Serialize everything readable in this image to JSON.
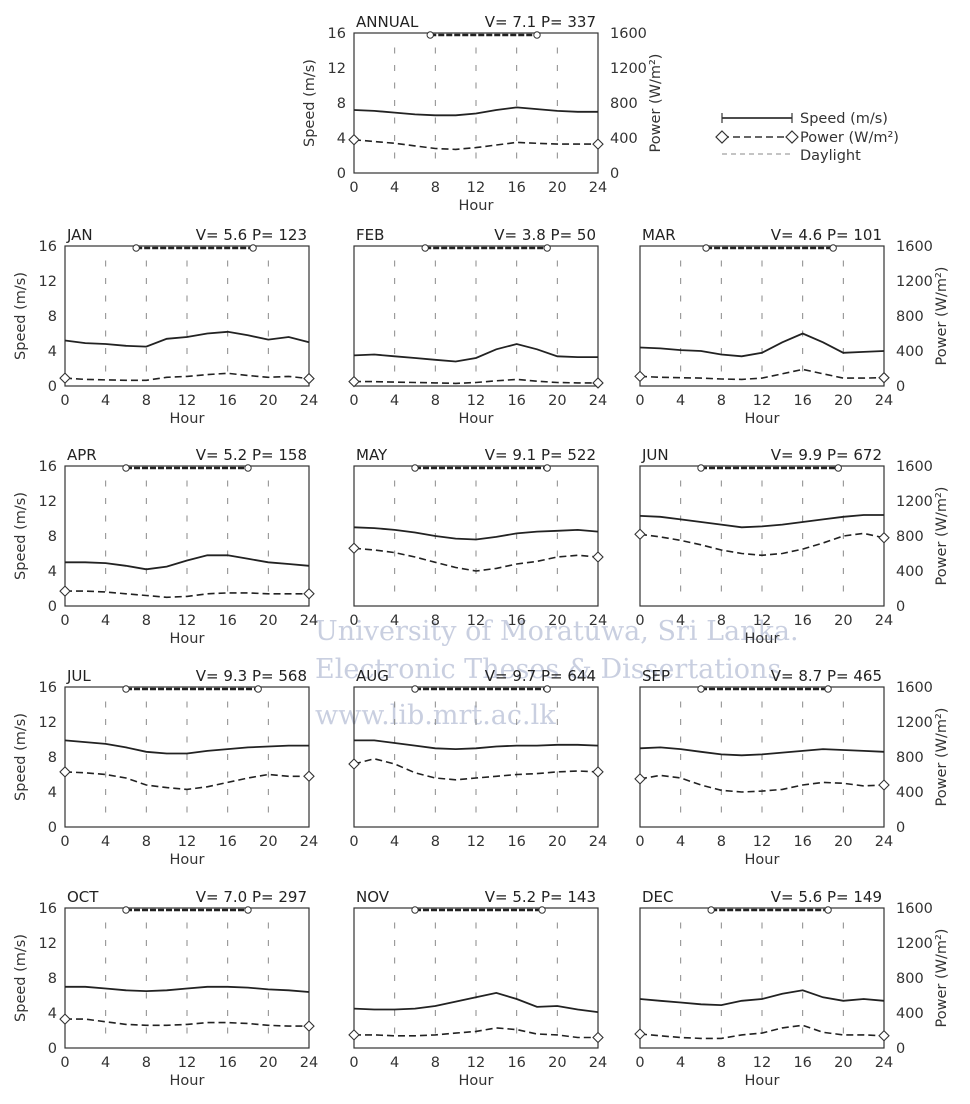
{
  "watermark": {
    "line1": "University of Moratuwa, Sri Lanka.",
    "line2": "Electronic Theses & Dissertations",
    "line3": "www.lib.mrt.ac.lk"
  },
  "legend": {
    "speed": "Speed (m/s)",
    "power": "Power (W/m²)",
    "daylight": "Daylight"
  },
  "chart_data": [
    {
      "id": "annual",
      "type": "line",
      "title": "ANNUAL",
      "vp": "V= 7.1 P= 337",
      "x": [
        0,
        2,
        4,
        6,
        8,
        10,
        12,
        14,
        16,
        18,
        20,
        22,
        24
      ],
      "xlabel": "Hour",
      "ylabel": "Speed (m/s)",
      "y2label": "Power (W/m²)",
      "xlim": [
        0,
        24
      ],
      "ylim": [
        0,
        16
      ],
      "y2lim": [
        0,
        1600
      ],
      "xticks": [
        "0",
        "4",
        "8",
        "12",
        "16",
        "20",
        "24"
      ],
      "yticks": [
        "0",
        "4",
        "8",
        "12",
        "16"
      ],
      "y2ticks": [
        "0",
        "400",
        "800",
        "1200",
        "1600"
      ],
      "daylight": [
        7.5,
        18
      ],
      "series": [
        {
          "name": "Speed (m/s)",
          "axis": "left",
          "values": [
            7.2,
            7.1,
            6.9,
            6.7,
            6.6,
            6.6,
            6.8,
            7.2,
            7.5,
            7.3,
            7.1,
            7.0,
            7.0
          ]
        },
        {
          "name": "Power (W/m²)",
          "axis": "right",
          "values": [
            380,
            360,
            340,
            310,
            280,
            270,
            290,
            320,
            350,
            340,
            330,
            330,
            330
          ]
        }
      ]
    },
    {
      "id": "jan",
      "type": "line",
      "title": "JAN",
      "vp": "V= 5.6 P= 123",
      "x": [
        0,
        2,
        4,
        6,
        8,
        10,
        12,
        14,
        16,
        18,
        20,
        22,
        24
      ],
      "xlabel": "Hour",
      "ylabel": "Speed (m/s)",
      "y2label": "",
      "xlim": [
        0,
        24
      ],
      "ylim": [
        0,
        16
      ],
      "y2lim": [
        0,
        1600
      ],
      "xticks": [
        "0",
        "4",
        "8",
        "12",
        "16",
        "20",
        "24"
      ],
      "yticks": [
        "0",
        "4",
        "8",
        "12",
        "16"
      ],
      "y2ticks": [],
      "daylight": [
        7.0,
        18.5
      ],
      "series": [
        {
          "name": "Speed (m/s)",
          "axis": "left",
          "values": [
            5.2,
            4.9,
            4.8,
            4.6,
            4.5,
            5.4,
            5.6,
            6.0,
            6.2,
            5.8,
            5.3,
            5.6,
            5.0
          ]
        },
        {
          "name": "Power (W/m²)",
          "axis": "right",
          "values": [
            90,
            75,
            70,
            65,
            65,
            100,
            110,
            130,
            145,
            120,
            100,
            110,
            85
          ]
        }
      ]
    },
    {
      "id": "feb",
      "type": "line",
      "title": "FEB",
      "vp": "V= 3.8 P=  50",
      "x": [
        0,
        2,
        4,
        6,
        8,
        10,
        12,
        14,
        16,
        18,
        20,
        22,
        24
      ],
      "xlabel": "Hour",
      "ylabel": "",
      "y2label": "",
      "xlim": [
        0,
        24
      ],
      "ylim": [
        0,
        16
      ],
      "y2lim": [
        0,
        1600
      ],
      "xticks": [
        "0",
        "4",
        "8",
        "12",
        "16",
        "20",
        "24"
      ],
      "yticks": [],
      "y2ticks": [],
      "daylight": [
        7.0,
        19.0
      ],
      "series": [
        {
          "name": "Speed (m/s)",
          "axis": "left",
          "values": [
            3.5,
            3.6,
            3.4,
            3.2,
            3.0,
            2.8,
            3.2,
            4.2,
            4.8,
            4.2,
            3.4,
            3.3,
            3.3
          ]
        },
        {
          "name": "Power (W/m²)",
          "axis": "right",
          "values": [
            50,
            50,
            45,
            40,
            35,
            30,
            40,
            60,
            75,
            55,
            40,
            35,
            35
          ]
        }
      ]
    },
    {
      "id": "mar",
      "type": "line",
      "title": "MAR",
      "vp": "V= 4.6 P= 101",
      "x": [
        0,
        2,
        4,
        6,
        8,
        10,
        12,
        14,
        16,
        18,
        20,
        22,
        24
      ],
      "xlabel": "Hour",
      "ylabel": "",
      "y2label": "Power (W/m²)",
      "xlim": [
        0,
        24
      ],
      "ylim": [
        0,
        16
      ],
      "y2lim": [
        0,
        1600
      ],
      "xticks": [
        "0",
        "4",
        "8",
        "12",
        "16",
        "20",
        "24"
      ],
      "yticks": [],
      "y2ticks": [
        "0",
        "400",
        "800",
        "1200",
        "1600"
      ],
      "daylight": [
        6.5,
        19.0
      ],
      "series": [
        {
          "name": "Speed (m/s)",
          "axis": "left",
          "values": [
            4.4,
            4.3,
            4.1,
            4.0,
            3.6,
            3.4,
            3.8,
            5.0,
            6.0,
            5.0,
            3.8,
            3.9,
            4.0
          ]
        },
        {
          "name": "Power (W/m²)",
          "axis": "right",
          "values": [
            110,
            100,
            95,
            90,
            80,
            75,
            90,
            140,
            190,
            140,
            90,
            90,
            95
          ]
        }
      ]
    },
    {
      "id": "apr",
      "type": "line",
      "title": "APR",
      "vp": "V= 5.2 P= 158",
      "x": [
        0,
        2,
        4,
        6,
        8,
        10,
        12,
        14,
        16,
        18,
        20,
        22,
        24
      ],
      "xlabel": "Hour",
      "ylabel": "Speed (m/s)",
      "y2label": "",
      "xlim": [
        0,
        24
      ],
      "ylim": [
        0,
        16
      ],
      "y2lim": [
        0,
        1600
      ],
      "xticks": [
        "0",
        "4",
        "8",
        "12",
        "16",
        "20",
        "24"
      ],
      "yticks": [
        "0",
        "4",
        "8",
        "12",
        "16"
      ],
      "y2ticks": [],
      "daylight": [
        6.0,
        18.0
      ],
      "series": [
        {
          "name": "Speed (m/s)",
          "axis": "left",
          "values": [
            5.0,
            5.0,
            4.9,
            4.6,
            4.2,
            4.5,
            5.2,
            5.8,
            5.8,
            5.4,
            5.0,
            4.8,
            4.6
          ]
        },
        {
          "name": "Power (W/m²)",
          "axis": "right",
          "values": [
            170,
            170,
            160,
            140,
            120,
            100,
            110,
            140,
            150,
            150,
            140,
            140,
            140
          ]
        }
      ]
    },
    {
      "id": "may",
      "type": "line",
      "title": "MAY",
      "vp": "V= 9.1 P= 522",
      "x": [
        0,
        2,
        4,
        6,
        8,
        10,
        12,
        14,
        16,
        18,
        20,
        22,
        24
      ],
      "xlabel": "",
      "ylabel": "",
      "y2label": "",
      "xlim": [
        0,
        24
      ],
      "ylim": [
        0,
        16
      ],
      "y2lim": [
        0,
        1600
      ],
      "xticks": [
        "0",
        "4",
        "8",
        "12",
        "16",
        "20",
        "24"
      ],
      "yticks": [],
      "y2ticks": [],
      "daylight": [
        6.0,
        19.0
      ],
      "series": [
        {
          "name": "Speed (m/s)",
          "axis": "left",
          "values": [
            9.0,
            8.9,
            8.7,
            8.4,
            8.0,
            7.7,
            7.6,
            7.9,
            8.3,
            8.5,
            8.6,
            8.7,
            8.5
          ]
        },
        {
          "name": "Power (W/m²)",
          "axis": "right",
          "values": [
            660,
            640,
            610,
            560,
            500,
            440,
            400,
            430,
            480,
            510,
            560,
            580,
            560
          ]
        }
      ]
    },
    {
      "id": "jun",
      "type": "line",
      "title": "JUN",
      "vp": "V= 9.9 P= 672",
      "x": [
        0,
        2,
        4,
        6,
        8,
        10,
        12,
        14,
        16,
        18,
        20,
        22,
        24
      ],
      "xlabel": "Hour",
      "ylabel": "",
      "y2label": "Power (W/m²)",
      "xlim": [
        0,
        24
      ],
      "ylim": [
        0,
        16
      ],
      "y2lim": [
        0,
        1600
      ],
      "xticks": [
        "0",
        "4",
        "8",
        "12",
        "16",
        "20",
        "24"
      ],
      "yticks": [],
      "y2ticks": [
        "0",
        "400",
        "800",
        "1200",
        "1600"
      ],
      "daylight": [
        6.0,
        19.5
      ],
      "series": [
        {
          "name": "Speed (m/s)",
          "axis": "left",
          "values": [
            10.3,
            10.2,
            9.9,
            9.6,
            9.3,
            9.0,
            9.1,
            9.3,
            9.6,
            9.9,
            10.2,
            10.4,
            10.4
          ]
        },
        {
          "name": "Power (W/m²)",
          "axis": "right",
          "values": [
            820,
            790,
            750,
            700,
            640,
            600,
            580,
            600,
            650,
            720,
            800,
            830,
            780
          ]
        }
      ]
    },
    {
      "id": "jul",
      "type": "line",
      "title": "JUL",
      "vp": "V= 9.3 P= 568",
      "x": [
        0,
        2,
        4,
        6,
        8,
        10,
        12,
        14,
        16,
        18,
        20,
        22,
        24
      ],
      "xlabel": "Hour",
      "ylabel": "Speed (m/s)",
      "y2label": "",
      "xlim": [
        0,
        24
      ],
      "ylim": [
        0,
        16
      ],
      "y2lim": [
        0,
        1600
      ],
      "xticks": [
        "0",
        "4",
        "8",
        "12",
        "16",
        "20",
        "24"
      ],
      "yticks": [
        "0",
        "4",
        "8",
        "12",
        "16"
      ],
      "y2ticks": [],
      "daylight": [
        6.0,
        19.0
      ],
      "series": [
        {
          "name": "Speed (m/s)",
          "axis": "left",
          "values": [
            9.9,
            9.7,
            9.5,
            9.1,
            8.6,
            8.4,
            8.4,
            8.7,
            8.9,
            9.1,
            9.2,
            9.3,
            9.3
          ]
        },
        {
          "name": "Power (W/m²)",
          "axis": "right",
          "values": [
            630,
            620,
            600,
            560,
            480,
            450,
            430,
            460,
            510,
            560,
            600,
            580,
            580
          ]
        }
      ]
    },
    {
      "id": "aug",
      "type": "line",
      "title": "AUG",
      "vp": "V= 9.7 P= 644",
      "x": [
        0,
        2,
        4,
        6,
        8,
        10,
        12,
        14,
        16,
        18,
        20,
        22,
        24
      ],
      "xlabel": "",
      "ylabel": "",
      "y2label": "",
      "xlim": [
        0,
        24
      ],
      "ylim": [
        0,
        16
      ],
      "y2lim": [
        0,
        1600
      ],
      "xticks": [
        "0",
        "4",
        "8",
        "12",
        "16",
        "20",
        "24"
      ],
      "yticks": [],
      "y2ticks": [],
      "daylight": [
        6.0,
        19.0
      ],
      "series": [
        {
          "name": "Speed (m/s)",
          "axis": "left",
          "values": [
            9.9,
            9.9,
            9.6,
            9.3,
            9.0,
            8.9,
            9.0,
            9.2,
            9.3,
            9.3,
            9.4,
            9.4,
            9.3
          ]
        },
        {
          "name": "Power (W/m²)",
          "axis": "right",
          "values": [
            720,
            780,
            720,
            620,
            560,
            540,
            560,
            580,
            600,
            610,
            630,
            640,
            630
          ]
        }
      ]
    },
    {
      "id": "sep",
      "type": "line",
      "title": "SEP",
      "vp": "V= 8.7 P= 465",
      "x": [
        0,
        2,
        4,
        6,
        8,
        10,
        12,
        14,
        16,
        18,
        20,
        22,
        24
      ],
      "xlabel": "Hour",
      "ylabel": "",
      "y2label": "Power (W/m²)",
      "xlim": [
        0,
        24
      ],
      "ylim": [
        0,
        16
      ],
      "y2lim": [
        0,
        1600
      ],
      "xticks": [
        "0",
        "4",
        "8",
        "12",
        "16",
        "20",
        "24"
      ],
      "yticks": [],
      "y2ticks": [
        "0",
        "400",
        "800",
        "1200",
        "1600"
      ],
      "daylight": [
        6.0,
        18.5
      ],
      "series": [
        {
          "name": "Speed (m/s)",
          "axis": "left",
          "values": [
            9.0,
            9.1,
            8.9,
            8.6,
            8.3,
            8.2,
            8.3,
            8.5,
            8.7,
            8.9,
            8.8,
            8.7,
            8.6
          ]
        },
        {
          "name": "Power (W/m²)",
          "axis": "right",
          "values": [
            550,
            590,
            560,
            480,
            420,
            400,
            410,
            430,
            480,
            510,
            500,
            470,
            480
          ]
        }
      ]
    },
    {
      "id": "oct",
      "type": "line",
      "title": "OCT",
      "vp": "V= 7.0 P= 297",
      "x": [
        0,
        2,
        4,
        6,
        8,
        10,
        12,
        14,
        16,
        18,
        20,
        22,
        24
      ],
      "xlabel": "Hour",
      "ylabel": "Speed (m/s)",
      "y2label": "",
      "xlim": [
        0,
        24
      ],
      "ylim": [
        0,
        16
      ],
      "y2lim": [
        0,
        1600
      ],
      "xticks": [
        "0",
        "4",
        "8",
        "12",
        "16",
        "20",
        "24"
      ],
      "yticks": [
        "0",
        "4",
        "8",
        "12",
        "16"
      ],
      "y2ticks": [],
      "daylight": [
        6.0,
        18.0
      ],
      "series": [
        {
          "name": "Speed (m/s)",
          "axis": "left",
          "values": [
            7.0,
            7.0,
            6.8,
            6.6,
            6.5,
            6.6,
            6.8,
            7.0,
            7.0,
            6.9,
            6.7,
            6.6,
            6.4
          ]
        },
        {
          "name": "Power (W/m²)",
          "axis": "right",
          "values": [
            330,
            330,
            300,
            270,
            260,
            260,
            270,
            290,
            290,
            280,
            260,
            250,
            250
          ]
        }
      ]
    },
    {
      "id": "nov",
      "type": "line",
      "title": "NOV",
      "vp": "V= 5.2 P= 143",
      "x": [
        0,
        2,
        4,
        6,
        8,
        10,
        12,
        14,
        16,
        18,
        20,
        22,
        24
      ],
      "xlabel": "Hour",
      "ylabel": "",
      "y2label": "",
      "xlim": [
        0,
        24
      ],
      "ylim": [
        0,
        16
      ],
      "y2lim": [
        0,
        1600
      ],
      "xticks": [
        "0",
        "4",
        "8",
        "12",
        "16",
        "20",
        "24"
      ],
      "yticks": [],
      "y2ticks": [],
      "daylight": [
        6.0,
        18.5
      ],
      "series": [
        {
          "name": "Speed (m/s)",
          "axis": "left",
          "values": [
            4.5,
            4.4,
            4.4,
            4.5,
            4.8,
            5.3,
            5.8,
            6.3,
            5.6,
            4.7,
            4.8,
            4.4,
            4.1
          ]
        },
        {
          "name": "Power (W/m²)",
          "axis": "right",
          "values": [
            150,
            150,
            140,
            140,
            150,
            170,
            190,
            230,
            210,
            160,
            150,
            120,
            120
          ]
        }
      ]
    },
    {
      "id": "dec",
      "type": "line",
      "title": "DEC",
      "vp": "V= 5.6 P= 149",
      "x": [
        0,
        2,
        4,
        6,
        8,
        10,
        12,
        14,
        16,
        18,
        20,
        22,
        24
      ],
      "xlabel": "Hour",
      "ylabel": "",
      "y2label": "Power (W/m²)",
      "xlim": [
        0,
        24
      ],
      "ylim": [
        0,
        16
      ],
      "y2lim": [
        0,
        1600
      ],
      "xticks": [
        "0",
        "4",
        "8",
        "12",
        "16",
        "20",
        "24"
      ],
      "yticks": [],
      "y2ticks": [
        "0",
        "400",
        "800",
        "1200",
        "1600"
      ],
      "daylight": [
        7.0,
        18.5
      ],
      "series": [
        {
          "name": "Speed (m/s)",
          "axis": "left",
          "values": [
            5.6,
            5.4,
            5.2,
            5.0,
            4.9,
            5.4,
            5.6,
            6.2,
            6.6,
            5.8,
            5.4,
            5.6,
            5.4
          ]
        },
        {
          "name": "Power (W/m²)",
          "axis": "right",
          "values": [
            160,
            140,
            120,
            110,
            110,
            150,
            170,
            230,
            260,
            180,
            150,
            150,
            140
          ]
        }
      ]
    }
  ]
}
